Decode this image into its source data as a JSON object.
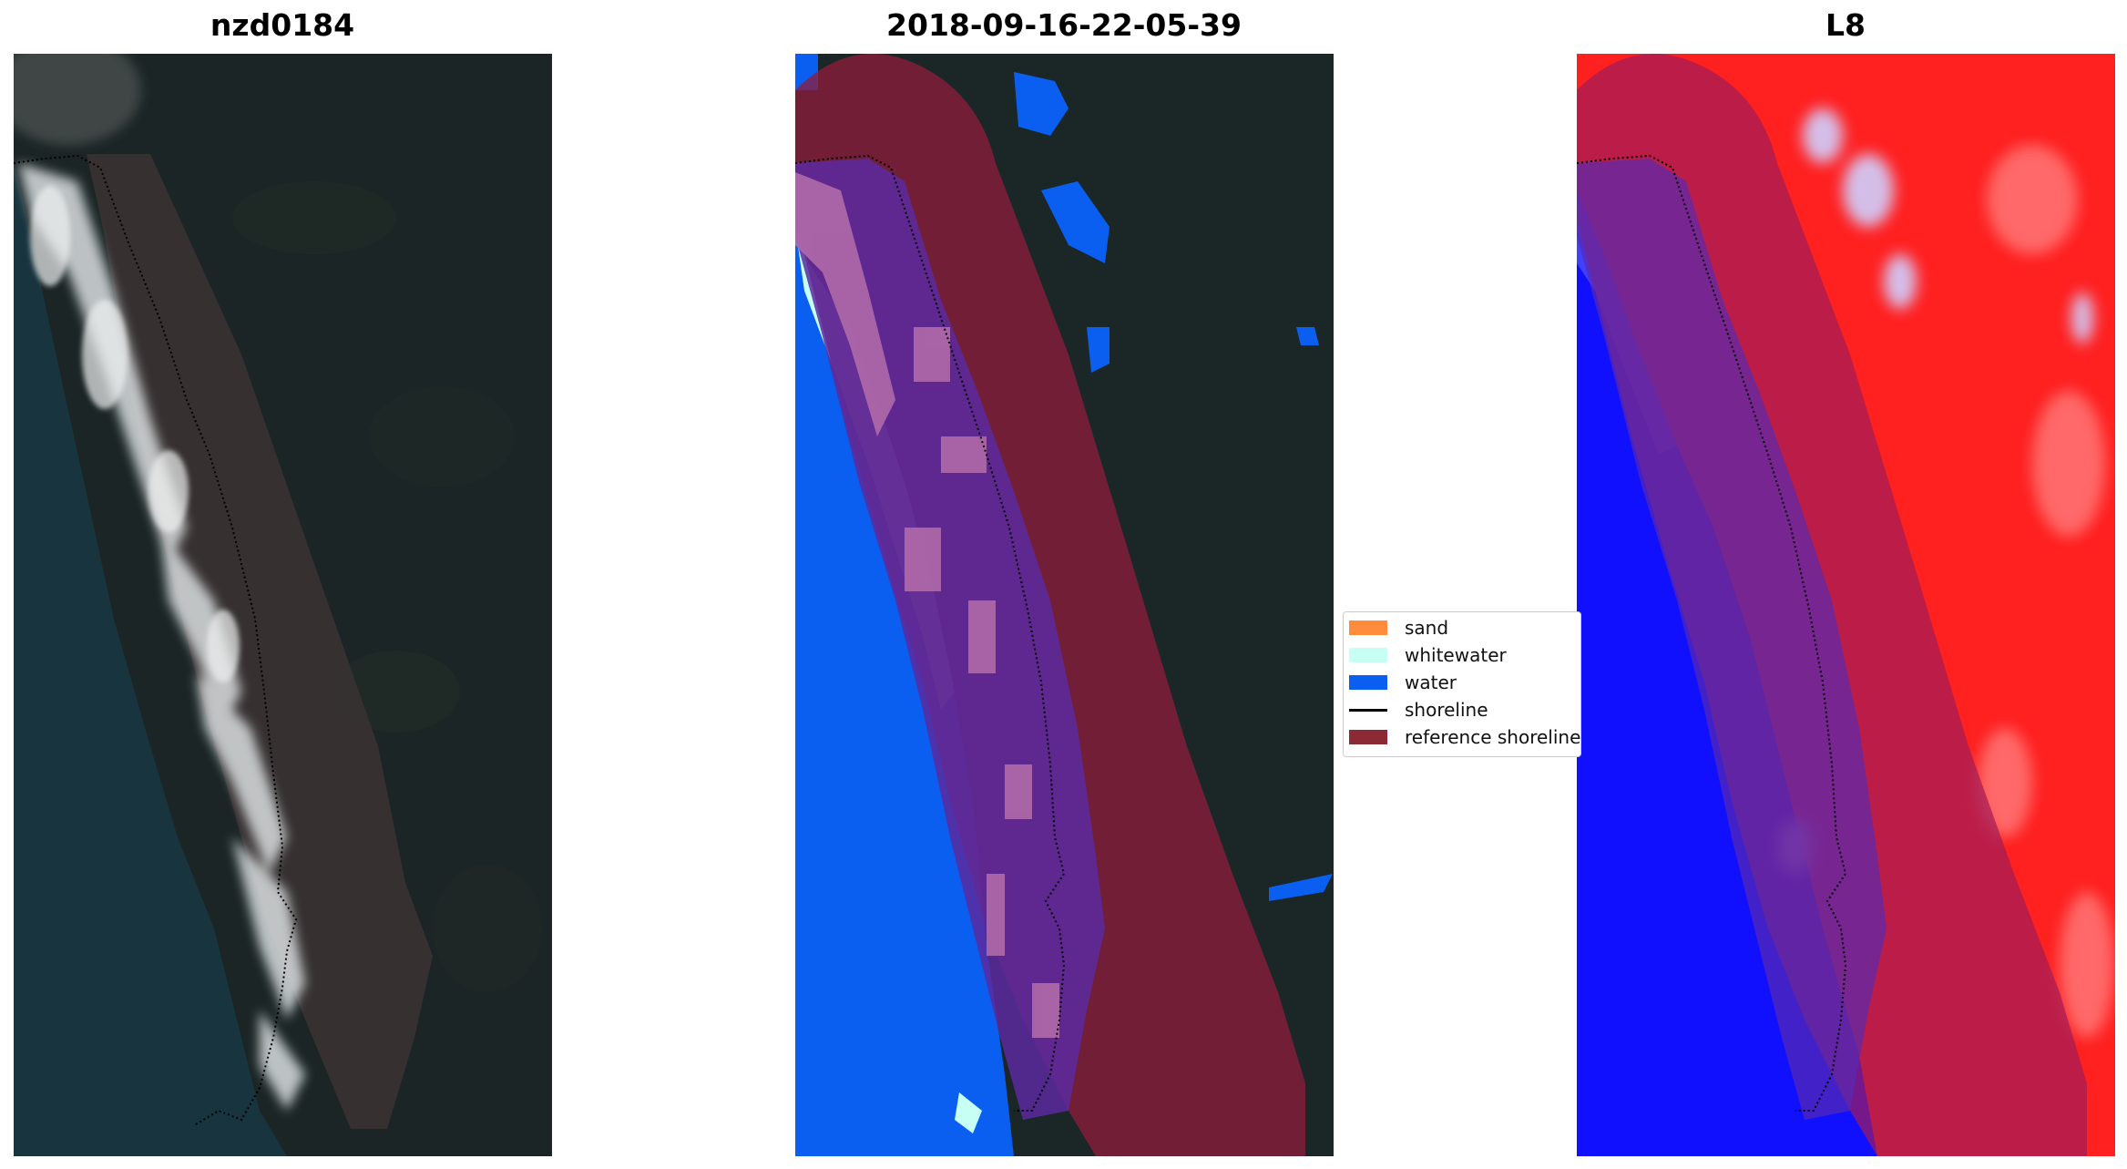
{
  "panels": [
    {
      "title": "nzd0184",
      "image": "rgb-satellite-image"
    },
    {
      "title": "2018-09-16-22-05-39",
      "image": "classified-image"
    },
    {
      "title": "L8",
      "image": "mndwi-image"
    }
  ],
  "legend": {
    "items": [
      {
        "label": "sand",
        "color": "#ff8c3c",
        "kind": "patch"
      },
      {
        "label": "whitewater",
        "color": "#c8fff5",
        "kind": "patch"
      },
      {
        "label": "water",
        "color": "#0a5ff0",
        "kind": "patch"
      },
      {
        "label": "shoreline",
        "color": "#000000",
        "kind": "line"
      },
      {
        "label": "reference shoreline",
        "color": "#8b2a35",
        "kind": "patch"
      }
    ]
  },
  "colors": {
    "land_dark": "#1b2626",
    "sea_dark": "#1a3540",
    "reference_buffer": "#8b1c3c",
    "water_class": "#0a5ff0",
    "whitewater_class": "#c8fff5",
    "index_positive": "#ff2020",
    "index_negative": "#1010ff"
  }
}
